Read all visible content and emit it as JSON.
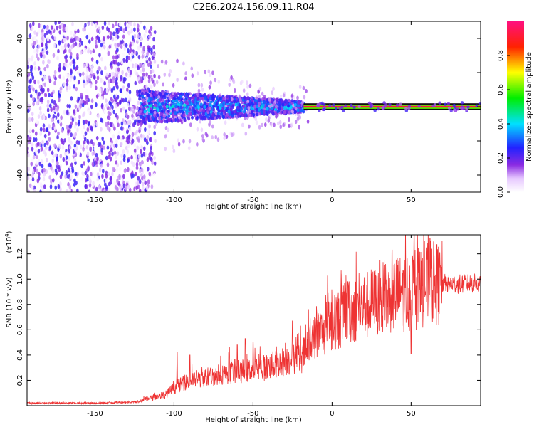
{
  "figure": {
    "title": "C2E6.2024.156.09.11.R04"
  },
  "chart_data": [
    {
      "type": "heatmap",
      "xlabel": "Height of straight line (km)",
      "ylabel": "Frequency (Hz)",
      "xlim": [
        -193,
        94
      ],
      "ylim": [
        -50,
        50
      ],
      "xticks": [
        -150,
        -100,
        -50,
        0,
        50
      ],
      "yticks": [
        -40,
        -20,
        0,
        20,
        40
      ],
      "colorbar": {
        "label": "Normalized spectral amplitude",
        "range": [
          0.0,
          1.0
        ],
        "ticks": [
          0.0,
          0.2,
          0.4,
          0.6,
          0.8
        ],
        "colormap": "rainbow (white-purple-blue-cyan-green-yellow-red)"
      },
      "description_regions": [
        {
          "x_range": [
            -193,
            -122
          ],
          "y_range": [
            -50,
            50
          ],
          "amplitude": [
            0.0,
            0.25
          ]
        },
        {
          "x_range": [
            -122,
            -18
          ],
          "y_range": [
            -10,
            10
          ],
          "amplitude": [
            0.1,
            0.45
          ]
        },
        {
          "x_range": [
            -18,
            94
          ],
          "y_range": [
            -1,
            1
          ],
          "amplitude": [
            0.9,
            1.0
          ]
        }
      ],
      "grid": false
    },
    {
      "type": "line",
      "xlabel": "Height of straight line (km)",
      "ylabel": "SNR (10 * v/v)",
      "yscale_label": "(x10",
      "yscale_exp": "4",
      "xlim": [
        -193,
        94
      ],
      "ylim": [
        0,
        13500
      ],
      "xticks": [
        -150,
        -100,
        -50,
        0,
        50
      ],
      "yticks": [
        2000,
        4000,
        6000,
        8000,
        10000,
        12000
      ],
      "ytick_labels": [
        "0.2",
        "0.4",
        "0.6",
        "0.8",
        "1.0",
        "1.2"
      ],
      "color": "#ee3333",
      "trend": {
        "x": [
          -193,
          -150,
          -125,
          -115,
          -105,
          -100,
          -90,
          -80,
          -70,
          -60,
          -50,
          -40,
          -30,
          -20,
          -15,
          -10,
          0,
          10,
          20,
          30,
          40,
          50,
          60,
          70,
          80,
          94
        ],
        "y": [
          200,
          200,
          300,
          600,
          900,
          1400,
          2000,
          2200,
          2500,
          2700,
          2800,
          3100,
          3500,
          3800,
          4500,
          5600,
          6400,
          7300,
          7900,
          8300,
          8800,
          9000,
          9600,
          9700,
          9600,
          9700
        ]
      },
      "peaks": {
        "x": [
          -98,
          -90,
          -65,
          -60,
          -55,
          -50,
          -25,
          -20,
          -15,
          10,
          22,
          38,
          45,
          50,
          52,
          55,
          58,
          62,
          68
        ],
        "y": [
          4200,
          4000,
          4600,
          4800,
          5300,
          5000,
          6700,
          6300,
          7600,
          9800,
          9500,
          12300,
          10700,
          4100,
          13500,
          10500,
          13800,
          13200,
          12100
        ]
      },
      "grid": false
    }
  ]
}
